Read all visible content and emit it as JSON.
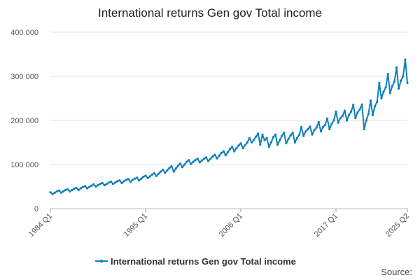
{
  "chart_data": {
    "type": "line",
    "title": "International returns Gen gov Total income",
    "xlabel": "",
    "ylabel": "",
    "ylim": [
      0,
      400000
    ],
    "y_ticks": [
      "0",
      "100 000",
      "200 000",
      "300 000",
      "400 000"
    ],
    "x_ticks": [
      "1984 Q1",
      "1995 Q1",
      "2006 Q1",
      "2017 Q1",
      "2025 Q2"
    ],
    "grid": true,
    "legend_position": "bottom",
    "source_label": "Source:",
    "series": [
      {
        "name": "International returns Gen gov Total income",
        "color": "#0f7fb8",
        "start_period": "1984 Q1",
        "frequency": "quarterly",
        "values": [
          37000,
          33000,
          36000,
          39000,
          41000,
          36000,
          39000,
          42000,
          44000,
          39000,
          42000,
          45000,
          47000,
          42000,
          46000,
          49000,
          51000,
          46000,
          49000,
          52000,
          55000,
          50000,
          53000,
          56000,
          58000,
          53000,
          56000,
          59000,
          61000,
          56000,
          59000,
          62000,
          64000,
          58000,
          62000,
          65000,
          67000,
          61000,
          65000,
          68000,
          70000,
          64000,
          68000,
          72000,
          75000,
          69000,
          73000,
          77000,
          80000,
          74000,
          79000,
          84000,
          88000,
          81000,
          87000,
          92000,
          96000,
          84000,
          91000,
          97000,
          102000,
          94000,
          100000,
          106000,
          110000,
          101000,
          106000,
          110000,
          113000,
          105000,
          109000,
          113000,
          116000,
          108000,
          113000,
          118000,
          122000,
          114000,
          120000,
          126000,
          130000,
          121000,
          128000,
          135000,
          140000,
          130000,
          137000,
          143000,
          148000,
          137000,
          144000,
          150000,
          160000,
          150000,
          155000,
          163000,
          170000,
          145000,
          168000,
          155000,
          160000,
          140000,
          150000,
          162000,
          168000,
          145000,
          155000,
          165000,
          172000,
          148000,
          158000,
          166000,
          172000,
          150000,
          160000,
          167000,
          185000,
          165000,
          175000,
          180000,
          186000,
          168000,
          178000,
          184000,
          196000,
          175000,
          185000,
          190000,
          204000,
          180000,
          192000,
          200000,
          220000,
          195000,
          205000,
          210000,
          222000,
          200000,
          212000,
          220000,
          235000,
          205000,
          218000,
          225000,
          236000,
          180000,
          200000,
          215000,
          245000,
          212000,
          232000,
          242000,
          285000,
          250000,
          265000,
          275000,
          305000,
          262000,
          278000,
          288000,
          320000,
          272000,
          290000,
          300000,
          338000,
          285000
        ]
      }
    ]
  }
}
